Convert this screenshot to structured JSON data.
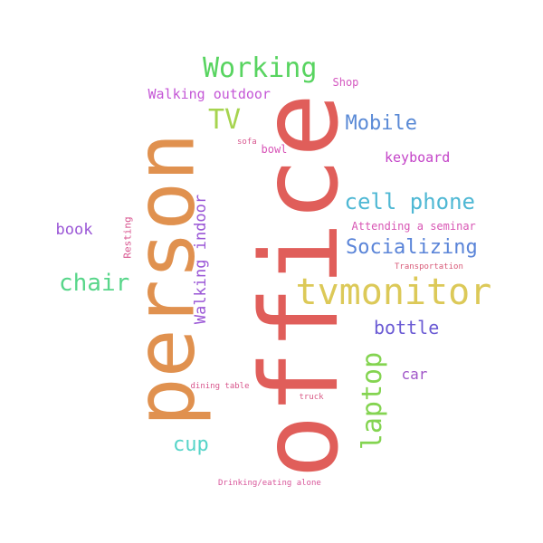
{
  "cloud": {
    "words": [
      {
        "text": "office",
        "color": "#e05e5a",
        "rotated": true
      },
      {
        "text": "person",
        "color": "#e0914f",
        "rotated": true
      },
      {
        "text": "tvmonitor",
        "color": "#dcc958",
        "rotated": false
      },
      {
        "text": "Working",
        "color": "#58d460",
        "rotated": false
      },
      {
        "text": "TV",
        "color": "#a6d44f",
        "rotated": false
      },
      {
        "text": "laptop",
        "color": "#84d451",
        "rotated": true
      },
      {
        "text": "cell phone",
        "color": "#4fb8d4",
        "rotated": false
      },
      {
        "text": "Socializing",
        "color": "#5a84d8",
        "rotated": false
      },
      {
        "text": "Mobile",
        "color": "#5a8ad6",
        "rotated": false
      },
      {
        "text": "chair",
        "color": "#58d68a",
        "rotated": false
      },
      {
        "text": "bottle",
        "color": "#6a5ad4",
        "rotated": false
      },
      {
        "text": "cup",
        "color": "#56d4c8",
        "rotated": false
      },
      {
        "text": "Walking indoor",
        "color": "#9a56d6",
        "rotated": true
      },
      {
        "text": "Walking outdoor",
        "color": "#c456d6",
        "rotated": false
      },
      {
        "text": "keyboard",
        "color": "#c444c8",
        "rotated": false
      },
      {
        "text": "book",
        "color": "#9a56d6",
        "rotated": false
      },
      {
        "text": "car",
        "color": "#a056c8",
        "rotated": false
      },
      {
        "text": "bowl",
        "color": "#d856b8",
        "rotated": false
      },
      {
        "text": "Shop",
        "color": "#d458c0",
        "rotated": false
      },
      {
        "text": "Resting",
        "color": "#d85690",
        "rotated": true
      },
      {
        "text": "Attending a seminar",
        "color": "#d856b4",
        "rotated": false
      },
      {
        "text": "Transportation",
        "color": "#d85a78",
        "rotated": false
      },
      {
        "text": "sofa",
        "color": "#d85890",
        "rotated": false
      },
      {
        "text": "dining table",
        "color": "#d8568c",
        "rotated": false
      },
      {
        "text": "truck",
        "color": "#d85a86",
        "rotated": false
      },
      {
        "text": "Drinking/eating alone",
        "color": "#d8569a",
        "rotated": false
      }
    ]
  }
}
